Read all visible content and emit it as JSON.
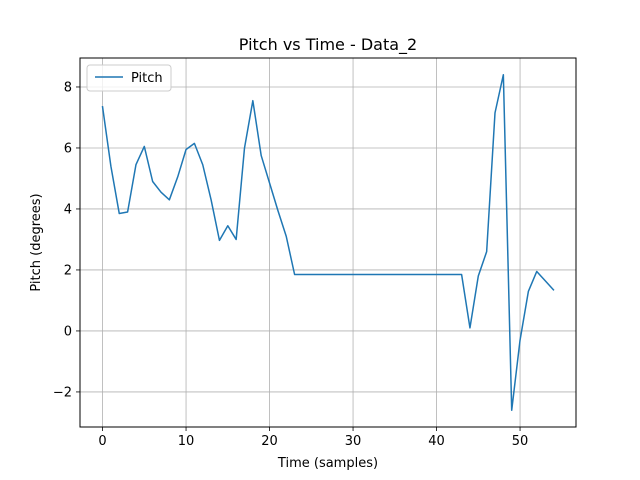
{
  "chart_data": {
    "type": "line",
    "title": "Pitch vs Time - Data_2",
    "xlabel": "Time (samples)",
    "ylabel": "Pitch (degrees)",
    "xlim": [
      -2.7,
      56.7
    ],
    "ylim": [
      -3.15,
      8.95
    ],
    "xticks": [
      0,
      10,
      20,
      30,
      40,
      50
    ],
    "yticks": [
      -2,
      0,
      2,
      4,
      6,
      8
    ],
    "grid": true,
    "legend": "top-left",
    "series": [
      {
        "name": "Pitch",
        "color": "#1f77b4",
        "x": [
          0,
          1,
          2,
          3,
          4,
          5,
          6,
          7,
          8,
          9,
          10,
          11,
          12,
          13,
          14,
          15,
          16,
          17,
          18,
          19,
          20,
          21,
          22,
          23,
          24,
          25,
          26,
          27,
          28,
          29,
          30,
          31,
          32,
          33,
          34,
          35,
          36,
          37,
          38,
          39,
          40,
          41,
          42,
          43,
          44,
          45,
          46,
          47,
          48,
          49,
          50,
          51,
          52,
          53,
          54
        ],
        "values": [
          7.35,
          5.4,
          3.85,
          3.9,
          5.45,
          6.05,
          4.9,
          4.55,
          4.3,
          5.05,
          5.95,
          6.15,
          5.45,
          4.3,
          2.97,
          3.45,
          3.0,
          6.0,
          7.55,
          5.75,
          4.85,
          3.95,
          3.1,
          1.85,
          1.85,
          1.85,
          1.85,
          1.85,
          1.85,
          1.85,
          1.85,
          1.85,
          1.85,
          1.85,
          1.85,
          1.85,
          1.85,
          1.85,
          1.85,
          1.85,
          1.85,
          1.85,
          1.85,
          1.85,
          0.1,
          1.8,
          2.6,
          7.15,
          8.4,
          -2.6,
          -0.3,
          1.3,
          1.95,
          1.65,
          1.35
        ]
      }
    ]
  }
}
